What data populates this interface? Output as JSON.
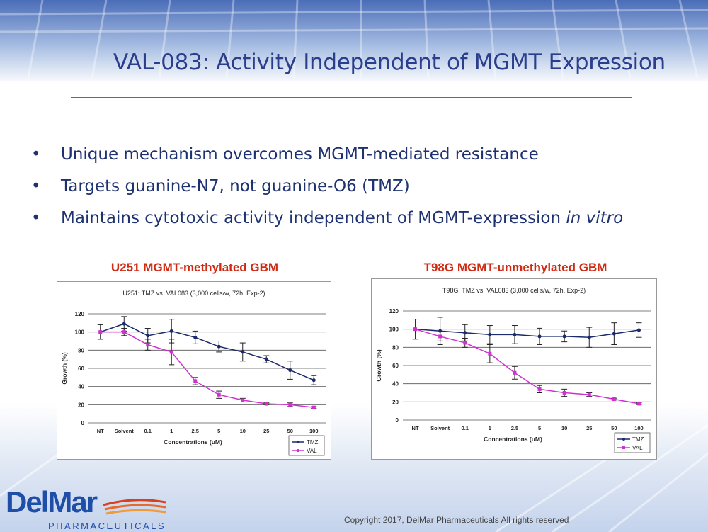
{
  "slide": {
    "title": "VAL-083: Activity Independent of MGMT Expression",
    "bullets": [
      {
        "text": "Unique mechanism overcomes MGMT-mediated resistance",
        "italic_suffix": ""
      },
      {
        "text": "Targets guanine-N7, not guanine-O6 (TMZ)",
        "italic_suffix": ""
      },
      {
        "text": "Maintains cytotoxic activity independent of MGMT-expression ",
        "italic_suffix": "in vitro"
      }
    ],
    "bullet_glyph": "•",
    "copyright": "Copyright 2017, DelMar Pharmaceuticals All rights reserved",
    "logo": {
      "brand": "DelMar",
      "sub": "PHARMACEUTICALS"
    },
    "colors": {
      "title": "#2a3e8c",
      "rule": "#d9401f",
      "chart_title": "#cf2a14",
      "tmz": "#1b2a6b",
      "val": "#d030d0"
    }
  },
  "chart_data": [
    {
      "type": "line",
      "heading": "U251 MGMT-methylated GBM",
      "title": "U251: TMZ vs. VAL083 (3,000 cells/w, 72h. Exp-2)",
      "xlabel": "Concentrations (uM)",
      "ylabel": "Growth (%)",
      "categories": [
        "NT",
        "Solvent",
        "0.1",
        "1",
        "2.5",
        "5",
        "10",
        "25",
        "50",
        "100"
      ],
      "ylim": [
        0,
        120
      ],
      "yticks": [
        0,
        20,
        40,
        60,
        80,
        100,
        120
      ],
      "grid": true,
      "legend": "bottom-right",
      "series": [
        {
          "name": "TMZ",
          "values": [
            100,
            109,
            96,
            101,
            94,
            84,
            78,
            70,
            58,
            47
          ],
          "errors": [
            8,
            8,
            8,
            13,
            7,
            6,
            10,
            4,
            10,
            5
          ]
        },
        {
          "name": "VAL",
          "values": [
            100,
            100,
            86,
            78,
            46,
            31,
            25,
            21,
            20,
            17
          ],
          "errors": [
            0,
            4,
            6,
            14,
            4,
            4,
            2,
            1,
            2,
            1
          ]
        }
      ]
    },
    {
      "type": "line",
      "heading": "T98G MGMT-unmethylated GBM",
      "title": "T98G: TMZ vs. VAL083 (3,000 cells/w, 72h. Exp-2)",
      "xlabel": "Concentrations (uM)",
      "ylabel": "Growth (%)",
      "categories": [
        "NT",
        "Solvent",
        "0.1",
        "1",
        "2.5",
        "5",
        "10",
        "25",
        "50",
        "100"
      ],
      "ylim": [
        0,
        120
      ],
      "yticks": [
        0,
        20,
        40,
        60,
        80,
        100,
        120
      ],
      "grid": true,
      "legend": "bottom-right",
      "series": [
        {
          "name": "TMZ",
          "values": [
            100,
            98,
            96,
            94,
            94,
            92,
            92,
            91,
            95,
            99
          ],
          "errors": [
            11,
            15,
            9,
            10,
            10,
            9,
            6,
            11,
            12,
            8
          ]
        },
        {
          "name": "VAL",
          "values": [
            100,
            92,
            85,
            73,
            52,
            34,
            30,
            28,
            23,
            18
          ],
          "errors": [
            0,
            5,
            5,
            10,
            7,
            4,
            4,
            2,
            1,
            1
          ]
        }
      ]
    }
  ]
}
